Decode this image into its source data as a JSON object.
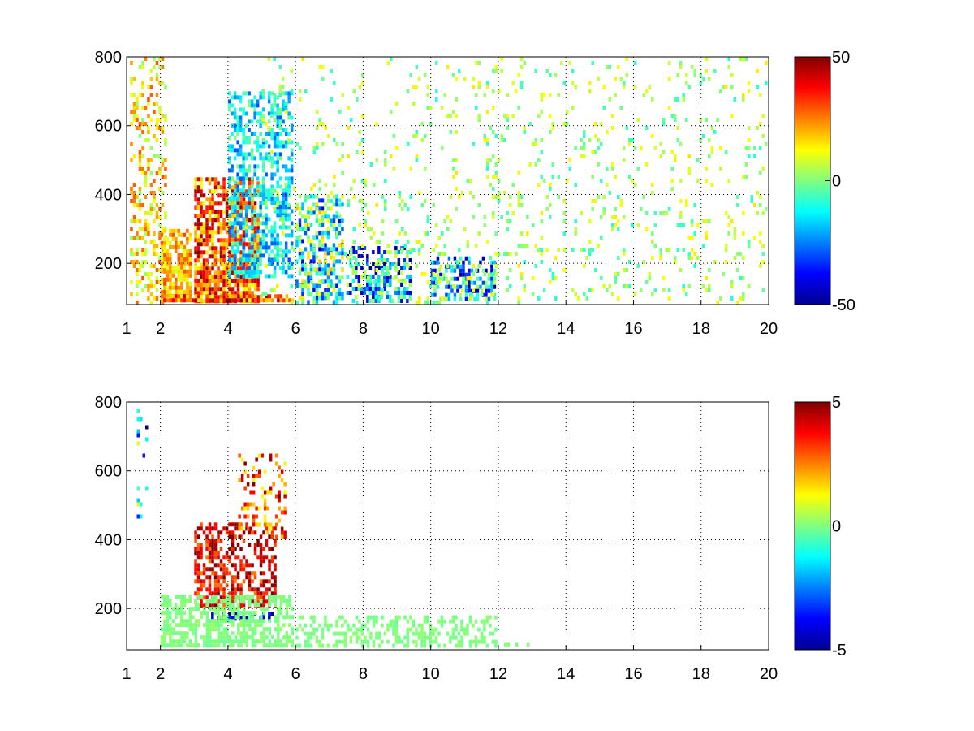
{
  "chart_data": [
    {
      "type": "heatmap",
      "title": "",
      "xlabel": "",
      "ylabel": "",
      "xlim": [
        1,
        20
      ],
      "ylim": [
        80,
        800
      ],
      "x_ticks": [
        1,
        2,
        4,
        6,
        8,
        10,
        12,
        14,
        16,
        18,
        20
      ],
      "y_ticks": [
        200,
        400,
        600,
        800
      ],
      "grid": true,
      "colormap": "jet",
      "colorbar": {
        "range": [
          -50,
          50
        ],
        "ticks": [
          50,
          0,
          -50
        ],
        "placement": "right"
      },
      "colors": {
        "low": "#00008f",
        "mid": "#80ff80",
        "high": "#800000",
        "background": "#ffffff"
      },
      "regions": [
        {
          "x": [
            1.1,
            2.2
          ],
          "y": [
            80,
            800
          ],
          "value": 15,
          "spread": 15,
          "density": 0.35
        },
        {
          "x": [
            2.0,
            3.0
          ],
          "y": [
            80,
            300
          ],
          "value": 20,
          "spread": 12,
          "density": 0.8
        },
        {
          "x": [
            3.0,
            5.0
          ],
          "y": [
            80,
            450
          ],
          "value": 30,
          "spread": 20,
          "density": 0.85
        },
        {
          "x": [
            4.0,
            6.0
          ],
          "y": [
            150,
            700
          ],
          "value": -15,
          "spread": 15,
          "density": 0.6
        },
        {
          "x": [
            2.0,
            6.0
          ],
          "y": [
            80,
            110
          ],
          "value": 30,
          "spread": 20,
          "density": 0.95
        },
        {
          "x": [
            6.0,
            7.5
          ],
          "y": [
            80,
            400
          ],
          "value": -10,
          "spread": 30,
          "density": 0.55
        },
        {
          "x": [
            7.5,
            9.5
          ],
          "y": [
            80,
            250
          ],
          "value": -20,
          "spread": 30,
          "density": 0.6
        },
        {
          "x": [
            10.0,
            12.0
          ],
          "y": [
            80,
            220
          ],
          "value": -20,
          "spread": 30,
          "density": 0.6
        },
        {
          "x": [
            5.0,
            20.0
          ],
          "y": [
            80,
            800
          ],
          "value": 3,
          "spread": 12,
          "density": 0.1
        }
      ]
    },
    {
      "type": "heatmap",
      "title": "",
      "xlabel": "",
      "ylabel": "",
      "xlim": [
        1,
        20
      ],
      "ylim": [
        80,
        800
      ],
      "x_ticks": [
        1,
        2,
        4,
        6,
        8,
        10,
        12,
        14,
        16,
        18,
        20
      ],
      "y_ticks": [
        200,
        400,
        600,
        800
      ],
      "grid": true,
      "colormap": "jet",
      "colorbar": {
        "range": [
          -5,
          5
        ],
        "ticks": [
          5,
          0,
          -5
        ],
        "placement": "right"
      },
      "colors": {
        "low": "#00008f",
        "mid": "#80ff80",
        "high": "#800000",
        "background": "#ffffff"
      },
      "regions": [
        {
          "x": [
            1.3,
            1.7
          ],
          "y": [
            400,
            780
          ],
          "value": -2,
          "spread": 3,
          "density": 0.15
        },
        {
          "x": [
            3.0,
            5.5
          ],
          "y": [
            200,
            450
          ],
          "value": 4,
          "spread": 1.5,
          "density": 0.6
        },
        {
          "x": [
            4.3,
            5.8
          ],
          "y": [
            400,
            650
          ],
          "value": 3,
          "spread": 2,
          "density": 0.3
        },
        {
          "x": [
            3.5,
            5.5
          ],
          "y": [
            160,
            190
          ],
          "value": -4,
          "spread": 1,
          "density": 0.6
        },
        {
          "x": [
            2.0,
            6.0
          ],
          "y": [
            80,
            240
          ],
          "value": 0,
          "spread": 0.2,
          "density": 0.75
        },
        {
          "x": [
            6.0,
            12.0
          ],
          "y": [
            80,
            180
          ],
          "value": 0,
          "spread": 0.2,
          "density": 0.5
        },
        {
          "x": [
            12.0,
            13.0
          ],
          "y": [
            80,
            100
          ],
          "value": 0,
          "spread": 0.2,
          "density": 0.4
        }
      ]
    }
  ]
}
